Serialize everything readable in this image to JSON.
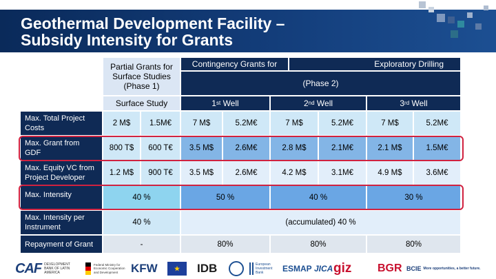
{
  "slide": {
    "title_line1": "Geothermal Development Facility –",
    "title_line2": "Subsidy Intensity for Grants"
  },
  "table": {
    "header_phase1": "Partial Grants for Surface Studies (Phase 1)",
    "header_contingency": "Contingency Grants for",
    "header_exploratory": "Exploratory Drilling",
    "header_phase2": "(Phase 2)",
    "sub_surface": "Surface Study",
    "sub_well1_num": "1",
    "sub_well1_sup": "st",
    "sub_well1_text": "Well",
    "sub_well2_num": "2",
    "sub_well2_sup": "nd",
    "sub_well2_text": "Well",
    "sub_well3_num": "3",
    "sub_well3_sup": "rd",
    "sub_well3_text": "Well",
    "rows": [
      {
        "label": "Max. Total Project Costs",
        "values": [
          "2 M$",
          "1.5M€",
          "7 M$",
          "5.2M€",
          "7 M$",
          "5.2M€",
          "7 M$",
          "5.2M€"
        ]
      },
      {
        "label": "Max. Grant from GDF",
        "values": [
          "800 T$",
          "600 T€",
          "3.5 M$",
          "2.6M€",
          "2.8 M$",
          "2.1M€",
          "2.1 M$",
          "1.5M€"
        ]
      },
      {
        "label": "Max. Equity VC from Project Developer",
        "values": [
          "1.2 M$",
          "900 T€",
          "3.5 M$",
          "2.6M€",
          "4.2 M$",
          "3.1M€",
          "4.9 M$",
          "3.6M€"
        ]
      },
      {
        "label": "Max. Intensity",
        "values": [
          "40 %",
          "50 %",
          "40 %",
          "30 %"
        ]
      },
      {
        "label": "Max. Intensity per Instrument",
        "values": [
          "40 %",
          "(accumulated) 40 %"
        ]
      },
      {
        "label": "Repayment of Grant",
        "values": [
          "-",
          "80%",
          "80%",
          "80%"
        ]
      }
    ]
  },
  "logos": {
    "caf": "CAF",
    "caf_sub": "DEVELOPMENT BANK OF LATIN AMERICA",
    "bmz": "Federal Ministry for Economic Cooperation and Development",
    "kfw": "KFW",
    "idb": "IDB",
    "eib": "European Investment Bank",
    "esmap": "ESMAP",
    "jica": "JICA",
    "giz": "giz",
    "bgr": "BGR",
    "bcie": "BCIE",
    "bcie_tagline": "More opportunities, a better future."
  },
  "colors": {
    "title_bar": "#133d7a",
    "header_dark": "#0f2a55",
    "highlight_red": "#d0213f"
  }
}
